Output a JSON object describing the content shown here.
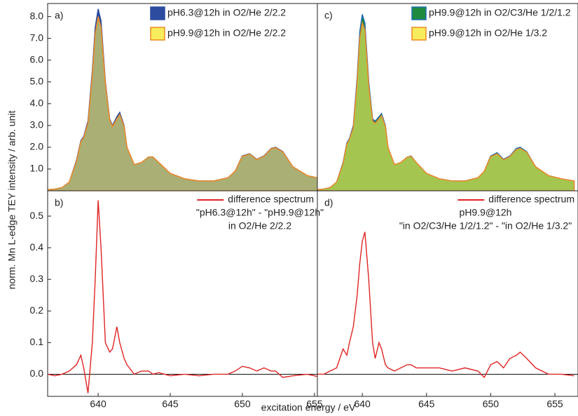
{
  "y_label": "norm. Mn L-edge TEY intensity / arb. unit",
  "x_label": "excitation energy / eV",
  "chart_data": [
    {
      "type": "area",
      "panel": "a)",
      "legend": "upper right",
      "xlim": [
        636.5,
        655.2
      ],
      "ylim": [
        0,
        8.6
      ],
      "yticks": [
        {
          "value": 1,
          "label": "1.0"
        },
        {
          "value": 2,
          "label": "2.0"
        },
        {
          "value": 3,
          "label": "3.0"
        },
        {
          "value": 4,
          "label": "4.0"
        },
        {
          "value": 5,
          "label": "5.0"
        },
        {
          "value": 6,
          "label": "6.0"
        },
        {
          "value": 7,
          "label": "7.0"
        },
        {
          "value": 8,
          "label": "8.0"
        }
      ],
      "x": [
        636.5,
        637,
        637.5,
        638,
        638.5,
        638.8,
        639,
        639.3,
        639.6,
        639.8,
        640,
        640.2,
        640.5,
        640.8,
        641,
        641.3,
        641.5,
        641.8,
        642,
        642.5,
        643,
        643.5,
        643.8,
        644.2,
        645,
        646,
        647,
        648,
        649,
        649.5,
        650,
        650.5,
        651,
        651.5,
        652,
        652.3,
        652.8,
        653.5,
        654.5,
        655.5,
        656.5
      ],
      "series": [
        {
          "name": "pH6.3@12h in O2/He 2/2.2",
          "color": "#2b4c9f",
          "edge": "#2b4c9f",
          "values": [
            0.05,
            0.08,
            0.15,
            0.4,
            1.4,
            2.3,
            2.5,
            3.2,
            5.5,
            7.5,
            8.35,
            7.8,
            5.0,
            3.3,
            3.0,
            3.4,
            3.6,
            3.0,
            2.0,
            1.2,
            1.3,
            1.55,
            1.55,
            1.3,
            0.8,
            0.55,
            0.45,
            0.45,
            0.6,
            0.9,
            1.6,
            1.7,
            1.45,
            1.6,
            1.95,
            2.0,
            1.8,
            1.1,
            0.7,
            0.55,
            0.45
          ]
        },
        {
          "name": "pH9.9@12h in O2/He 2/2.2",
          "color": "#f7ec5c",
          "edge": "#f08a24",
          "values": [
            0.05,
            0.08,
            0.15,
            0.4,
            1.35,
            2.25,
            2.45,
            3.1,
            5.3,
            7.2,
            8.0,
            7.5,
            4.9,
            3.25,
            2.95,
            3.3,
            3.5,
            2.95,
            2.0,
            1.2,
            1.3,
            1.55,
            1.55,
            1.3,
            0.8,
            0.55,
            0.45,
            0.45,
            0.6,
            0.9,
            1.58,
            1.68,
            1.44,
            1.58,
            1.93,
            1.98,
            1.78,
            1.1,
            0.7,
            0.55,
            0.45
          ]
        }
      ]
    },
    {
      "type": "line",
      "panel": "b)",
      "legend": "upper right",
      "xlim": [
        636.5,
        655.2
      ],
      "ylim": [
        -0.07,
        0.58
      ],
      "yticks": [
        {
          "value": 0,
          "label": "0.0"
        },
        0.1,
        0.2,
        0.3,
        0.4,
        0.5
      ],
      "xticks": [
        640,
        645,
        650,
        655
      ],
      "annotations": [
        "\"pH6.3@12h\" - \"pH9.9@12h\"",
        "in O2/He 2/2.2"
      ],
      "x": [
        636.5,
        637,
        637.5,
        638,
        638.5,
        638.8,
        639,
        639.3,
        639.6,
        639.8,
        640,
        640.2,
        640.5,
        640.8,
        641,
        641.3,
        641.5,
        641.8,
        642,
        642.5,
        643,
        643.5,
        643.8,
        644.2,
        645,
        646,
        647,
        648,
        649,
        649.5,
        650,
        650.5,
        651,
        651.5,
        652,
        652.3,
        652.8,
        653.5,
        654.5,
        655.5,
        656.5
      ],
      "series": [
        {
          "name": "difference spectrum",
          "color": "#e02424",
          "values": [
            0,
            -0.005,
            0,
            0.01,
            0.03,
            0.06,
            0.02,
            -0.06,
            0.1,
            0.3,
            0.55,
            0.4,
            0.1,
            0.07,
            0.08,
            0.15,
            0.1,
            0.05,
            0.03,
            0,
            0.01,
            0.01,
            0,
            0.005,
            -0.005,
            0,
            -0.005,
            0,
            0,
            0.01,
            0.025,
            0.02,
            0.01,
            0.02,
            0.01,
            0.01,
            -0.01,
            -0.005,
            0,
            -0.01,
            0
          ]
        }
      ]
    },
    {
      "type": "area",
      "panel": "c)",
      "legend": "upper right",
      "xlim": [
        636.5,
        656.8
      ],
      "ylim": [
        0,
        8.6
      ],
      "x": [
        636.5,
        637,
        637.5,
        638,
        638.5,
        638.8,
        639,
        639.3,
        639.6,
        639.8,
        640,
        640.2,
        640.5,
        640.8,
        641,
        641.3,
        641.5,
        641.8,
        642,
        642.5,
        643,
        643.5,
        643.8,
        644.2,
        645,
        646,
        647,
        648,
        649,
        649.5,
        650,
        650.5,
        651,
        651.5,
        652,
        652.3,
        652.8,
        653.5,
        654.5,
        655.5,
        656.5
      ],
      "series": [
        {
          "name": "pH9.9@12h in O2/C3/He 1/2/1.2",
          "color": "#1d8a3e",
          "edge": "#1d6fb0",
          "values": [
            0.05,
            0.08,
            0.15,
            0.4,
            1.3,
            2.2,
            2.4,
            3.0,
            5.2,
            7.3,
            8.1,
            7.7,
            5.0,
            3.3,
            3.2,
            3.4,
            3.55,
            3.0,
            2.0,
            1.2,
            1.3,
            1.55,
            1.6,
            1.3,
            0.8,
            0.55,
            0.45,
            0.45,
            0.6,
            0.9,
            1.6,
            1.75,
            1.45,
            1.6,
            1.95,
            2.0,
            1.8,
            1.1,
            0.7,
            0.55,
            0.45
          ]
        },
        {
          "name": "pH9.9@12h in O2/He 1/3.2",
          "color": "#f7ec5c",
          "edge": "#f08a24",
          "values": [
            0.05,
            0.08,
            0.15,
            0.4,
            1.25,
            2.15,
            2.35,
            2.9,
            5.0,
            7.0,
            7.7,
            7.4,
            4.8,
            3.2,
            3.1,
            3.3,
            3.45,
            2.95,
            2.0,
            1.2,
            1.3,
            1.55,
            1.58,
            1.3,
            0.8,
            0.55,
            0.45,
            0.45,
            0.6,
            0.9,
            1.57,
            1.7,
            1.42,
            1.57,
            1.9,
            1.95,
            1.77,
            1.1,
            0.7,
            0.55,
            0.45
          ]
        }
      ]
    },
    {
      "type": "line",
      "panel": "d)",
      "legend": "upper right",
      "xlim": [
        636.5,
        656.8
      ],
      "ylim": [
        -0.07,
        0.58
      ],
      "xticks": [
        640,
        645,
        650,
        655
      ],
      "annotations": [
        "pH9.9@12h",
        "\"in O2/C3/He 1/2/1.2\" - \"in O2/He 1/3.2\""
      ],
      "x": [
        636.5,
        637,
        637.5,
        638,
        638.5,
        638.8,
        639,
        639.3,
        639.6,
        639.8,
        640,
        640.2,
        640.5,
        640.8,
        641,
        641.3,
        641.5,
        641.8,
        642,
        642.5,
        643,
        643.5,
        643.8,
        644.2,
        645,
        646,
        647,
        648,
        649,
        649.5,
        650,
        650.5,
        651,
        651.5,
        652,
        652.3,
        652.8,
        653.5,
        654.5,
        655.5,
        656.5
      ],
      "series": [
        {
          "name": "difference spectrum",
          "color": "#e02424",
          "values": [
            0,
            0,
            0.01,
            0.02,
            0.08,
            0.06,
            0.1,
            0.15,
            0.25,
            0.35,
            0.42,
            0.45,
            0.3,
            0.1,
            0.05,
            0.1,
            0.08,
            0.03,
            0.02,
            0.01,
            0.02,
            0.03,
            0.03,
            0.02,
            0.02,
            0.02,
            0.01,
            0.02,
            0.01,
            -0.01,
            0.03,
            0.04,
            0.02,
            0.05,
            0.06,
            0.07,
            0.05,
            0.02,
            0,
            0,
            -0.005
          ]
        }
      ]
    }
  ]
}
